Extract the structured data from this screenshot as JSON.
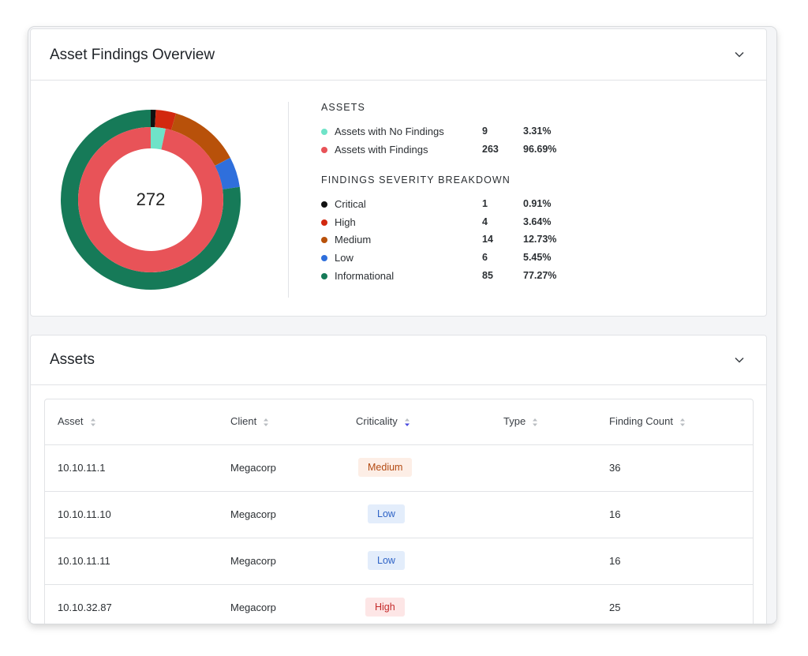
{
  "overview": {
    "title": "Asset Findings Overview",
    "total": "272",
    "assets_heading": "ASSETS",
    "assets": [
      {
        "label": "Assets with No Findings",
        "count": "9",
        "pct": "3.31%",
        "color": "#6fe3c8"
      },
      {
        "label": "Assets with Findings",
        "count": "263",
        "pct": "96.69%",
        "color": "#e85358"
      }
    ],
    "severity_heading": "FINDINGS SEVERITY BREAKDOWN",
    "severity": [
      {
        "label": "Critical",
        "count": "1",
        "pct": "0.91%",
        "color": "#111111"
      },
      {
        "label": "High",
        "count": "4",
        "pct": "3.64%",
        "color": "#d2280f"
      },
      {
        "label": "Medium",
        "count": "14",
        "pct": "12.73%",
        "color": "#b8510a"
      },
      {
        "label": "Low",
        "count": "6",
        "pct": "5.45%",
        "color": "#2f6fdc"
      },
      {
        "label": "Informational",
        "count": "85",
        "pct": "77.27%",
        "color": "#167a58"
      }
    ]
  },
  "chart_data": {
    "type": "pie",
    "inner_ring": {
      "labels": [
        "Assets with No Findings",
        "Assets with Findings"
      ],
      "values": [
        9,
        263
      ]
    },
    "outer_ring": {
      "labels": [
        "Critical",
        "High",
        "Medium",
        "Low",
        "Informational"
      ],
      "values": [
        1,
        4,
        14,
        6,
        85
      ]
    },
    "center_label": "272"
  },
  "assets": {
    "title": "Assets",
    "columns": [
      "Asset",
      "Client",
      "Criticality",
      "Type",
      "Finding Count"
    ],
    "rows": [
      {
        "asset": "10.10.11.1",
        "client": "Megacorp",
        "criticality": "Medium",
        "type": "",
        "count": "36"
      },
      {
        "asset": "10.10.11.10",
        "client": "Megacorp",
        "criticality": "Low",
        "type": "",
        "count": "16"
      },
      {
        "asset": "10.10.11.11",
        "client": "Megacorp",
        "criticality": "Low",
        "type": "",
        "count": "16"
      },
      {
        "asset": "10.10.32.87",
        "client": "Megacorp",
        "criticality": "High",
        "type": "",
        "count": "25"
      }
    ]
  },
  "icons": {
    "collapse": "chevron-down-icon",
    "sort": "sort-icon",
    "sort_active": "sort-desc-icon"
  },
  "colors": {
    "accent": "#4a4adf"
  }
}
